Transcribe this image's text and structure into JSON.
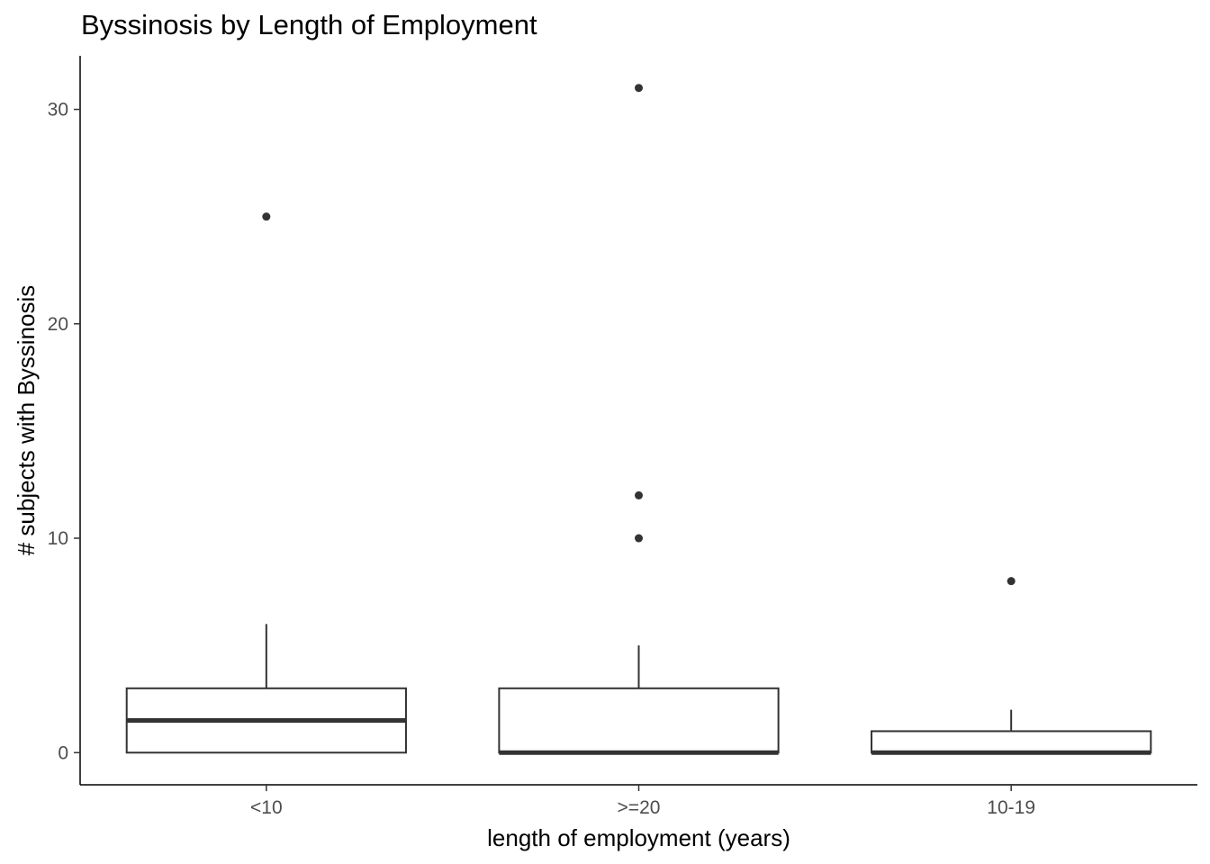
{
  "chart_data": {
    "type": "boxplot",
    "title": "Byssinosis by Length of Employment",
    "xlabel": "length of employment (years)",
    "ylabel": "# subjects with Byssinosis",
    "categories": [
      "<10",
      ">=20",
      "10-19"
    ],
    "ylim": [
      -1.5,
      32.5
    ],
    "y_ticks": [
      0,
      10,
      20,
      30
    ],
    "grid": false,
    "boxes": [
      {
        "category": "<10",
        "q1": 0,
        "median": 1.5,
        "q3": 3,
        "whisker_low": 0,
        "whisker_high": 6,
        "outliers": [
          25
        ]
      },
      {
        "category": ">=20",
        "q1": 0,
        "median": 0,
        "q3": 3,
        "whisker_low": 0,
        "whisker_high": 5,
        "outliers": [
          31,
          12,
          10
        ]
      },
      {
        "category": "10-19",
        "q1": 0,
        "median": 0,
        "q3": 1,
        "whisker_low": 0,
        "whisker_high": 2,
        "outliers": [
          8
        ]
      }
    ],
    "colors": {
      "box_stroke": "#333333",
      "box_fill": "#ffffff",
      "axis": "#000000",
      "tick_text": "#4d4d4d"
    }
  }
}
